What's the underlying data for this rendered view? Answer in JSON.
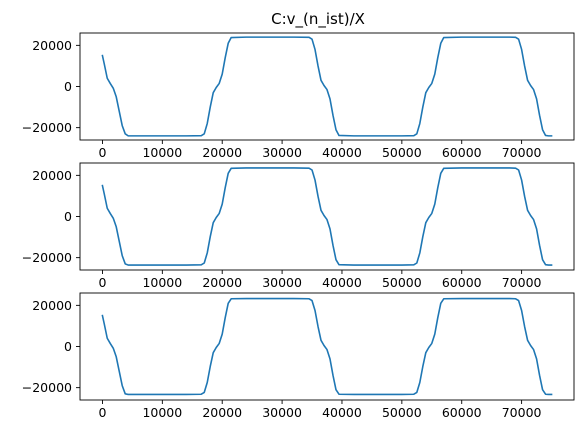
{
  "figure": {
    "title": "C:v_(n_ist)/X",
    "line_color": "#1f77b4"
  },
  "chart_data": [
    {
      "type": "line",
      "title": "C:v_(n_ist)/X",
      "xlabel": "",
      "ylabel": "",
      "xlim": [
        -3750,
        78750
      ],
      "ylim": [
        -26000,
        26000
      ],
      "xticks": [
        0,
        10000,
        20000,
        30000,
        40000,
        50000,
        60000,
        70000
      ],
      "xtick_labels": [
        "0",
        "10000",
        "20000",
        "30000",
        "40000",
        "50000",
        "60000",
        "70000"
      ],
      "yticks": [
        -20000,
        0,
        20000
      ],
      "ytick_labels": [
        "−20000",
        "0",
        "20000"
      ],
      "grid": false,
      "series": [
        {
          "x": [
            0,
            300,
            800,
            1300,
            1800,
            2300,
            2800,
            3300,
            3800,
            4300,
            6000,
            10000,
            14000,
            16500,
            17000,
            17500,
            18000,
            18500,
            19000,
            19500,
            20000,
            20500,
            21000,
            21500,
            24000,
            28000,
            32000,
            34500,
            35000,
            35500,
            36000,
            36500,
            37000,
            37500,
            38000,
            38500,
            39000,
            39500,
            42000,
            46000,
            50000,
            52000,
            52500,
            53000,
            53500,
            54000,
            54500,
            55000,
            55500,
            56000,
            56500,
            57000,
            60000,
            64000,
            68000,
            69000,
            69500,
            70000,
            70500,
            71000,
            71500,
            72000,
            72500,
            73000,
            73500,
            74000,
            74500,
            75000
          ],
          "y": [
            15000,
            11000,
            4000,
            1500,
            -800,
            -5000,
            -12000,
            -19000,
            -23000,
            -24000,
            -24000,
            -24000,
            -24000,
            -23900,
            -23000,
            -18000,
            -10000,
            -3000,
            -500,
            1500,
            6000,
            14000,
            21000,
            23800,
            24000,
            24000,
            24000,
            23900,
            23000,
            18000,
            10000,
            3000,
            500,
            -1500,
            -6000,
            -14000,
            -21000,
            -23800,
            -24000,
            -24000,
            -24000,
            -23900,
            -23000,
            -18000,
            -10000,
            -3000,
            -500,
            1500,
            6000,
            14000,
            21000,
            23800,
            24000,
            24000,
            24000,
            23900,
            23000,
            18000,
            10000,
            3000,
            500,
            -1500,
            -6000,
            -14000,
            -21000,
            -23800,
            -24000,
            -24000
          ]
        }
      ]
    },
    {
      "type": "line",
      "title": "",
      "xlabel": "",
      "ylabel": "",
      "xlim": [
        -3750,
        78750
      ],
      "ylim": [
        -26000,
        26000
      ],
      "xticks": [
        0,
        10000,
        20000,
        30000,
        40000,
        50000,
        60000,
        70000
      ],
      "xtick_labels": [
        "0",
        "10000",
        "20000",
        "30000",
        "40000",
        "50000",
        "60000",
        "70000"
      ],
      "yticks": [
        -20000,
        0,
        20000
      ],
      "ytick_labels": [
        "−20000",
        "0",
        "20000"
      ],
      "grid": false,
      "series": [
        {
          "x": [
            0,
            300,
            800,
            1300,
            1800,
            2300,
            2800,
            3300,
            3800,
            4300,
            6000,
            10000,
            14000,
            16500,
            17000,
            17500,
            18000,
            18500,
            19000,
            19500,
            20000,
            20500,
            21000,
            21500,
            24000,
            28000,
            32000,
            34500,
            35000,
            35500,
            36000,
            36500,
            37000,
            37500,
            38000,
            38500,
            39000,
            39500,
            42000,
            46000,
            50000,
            52000,
            52500,
            53000,
            53500,
            54000,
            54500,
            55000,
            55500,
            56000,
            56500,
            57000,
            60000,
            64000,
            68000,
            69000,
            69500,
            70000,
            70500,
            71000,
            71500,
            72000,
            72500,
            73000,
            73500,
            74000,
            74500,
            75000
          ],
          "y": [
            15000,
            11000,
            4000,
            1500,
            -800,
            -5000,
            -12000,
            -19000,
            -23000,
            -23600,
            -23600,
            -23600,
            -23600,
            -23500,
            -22600,
            -17700,
            -9800,
            -3000,
            -500,
            1500,
            6000,
            14000,
            21000,
            23400,
            23600,
            23600,
            23600,
            23500,
            22600,
            17700,
            9800,
            3000,
            500,
            -1500,
            -6000,
            -14000,
            -21000,
            -23400,
            -23600,
            -23600,
            -23600,
            -23500,
            -22600,
            -17700,
            -9800,
            -3000,
            -500,
            1500,
            6000,
            14000,
            21000,
            23400,
            23600,
            23600,
            23600,
            23500,
            22600,
            17700,
            9800,
            3000,
            500,
            -1500,
            -6000,
            -14000,
            -21000,
            -23400,
            -23600,
            -23600
          ]
        }
      ]
    },
    {
      "type": "line",
      "title": "",
      "xlabel": "",
      "ylabel": "",
      "xlim": [
        -3750,
        78750
      ],
      "ylim": [
        -26000,
        26000
      ],
      "xticks": [
        0,
        10000,
        20000,
        30000,
        40000,
        50000,
        60000,
        70000
      ],
      "xtick_labels": [
        "0",
        "10000",
        "20000",
        "30000",
        "40000",
        "50000",
        "60000",
        "70000"
      ],
      "yticks": [
        -20000,
        0,
        20000
      ],
      "ytick_labels": [
        "−20000",
        "0",
        "20000"
      ],
      "grid": false,
      "series": [
        {
          "x": [
            0,
            300,
            800,
            1300,
            1800,
            2300,
            2800,
            3300,
            3800,
            4300,
            6000,
            10000,
            14000,
            16500,
            17000,
            17500,
            18000,
            18500,
            19000,
            19500,
            20000,
            20500,
            21000,
            21500,
            24000,
            28000,
            32000,
            34500,
            35000,
            35500,
            36000,
            36500,
            37000,
            37500,
            38000,
            38500,
            39000,
            39500,
            42000,
            46000,
            50000,
            52000,
            52500,
            53000,
            53500,
            54000,
            54500,
            55000,
            55500,
            56000,
            56500,
            57000,
            60000,
            64000,
            68000,
            69000,
            69500,
            70000,
            70500,
            71000,
            71500,
            72000,
            72500,
            73000,
            73500,
            74000,
            74500,
            75000
          ],
          "y": [
            15000,
            11000,
            4000,
            1500,
            -800,
            -5000,
            -12000,
            -19000,
            -23000,
            -23300,
            -23300,
            -23300,
            -23300,
            -23200,
            -22300,
            -17500,
            -9700,
            -3000,
            -500,
            1500,
            6000,
            14000,
            21000,
            23200,
            23300,
            23300,
            23300,
            23200,
            22300,
            17500,
            9700,
            3000,
            500,
            -1500,
            -6000,
            -14000,
            -21000,
            -23200,
            -23300,
            -23300,
            -23300,
            -23200,
            -22300,
            -17500,
            -9700,
            -3000,
            -500,
            1500,
            6000,
            14000,
            21000,
            23200,
            23300,
            23300,
            23300,
            23200,
            22300,
            17500,
            9700,
            3000,
            500,
            -1500,
            -6000,
            -14000,
            -21000,
            -23200,
            -23300,
            -23300
          ]
        }
      ]
    }
  ]
}
